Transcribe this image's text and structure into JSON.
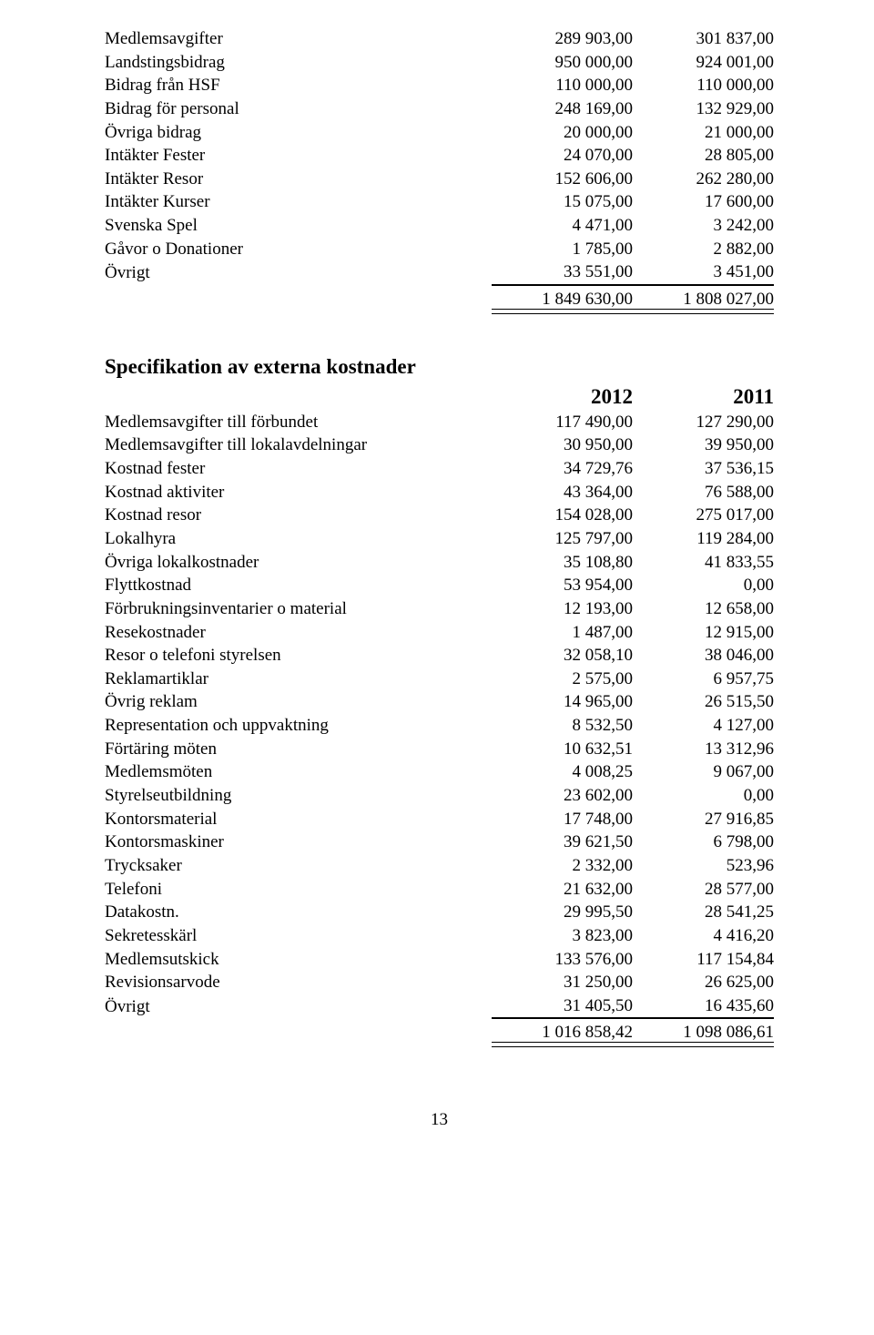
{
  "table1": {
    "rows": [
      {
        "label": "Medlemsavgifter",
        "a": "289 903,00",
        "b": "301 837,00"
      },
      {
        "label": "Landstingsbidrag",
        "a": "950 000,00",
        "b": "924 001,00"
      },
      {
        "label": "Bidrag från HSF",
        "a": "110 000,00",
        "b": "110 000,00"
      },
      {
        "label": "Bidrag för personal",
        "a": "248 169,00",
        "b": "132 929,00"
      },
      {
        "label": "Övriga bidrag",
        "a": "20 000,00",
        "b": "21 000,00"
      },
      {
        "label": "Intäkter Fester",
        "a": "24 070,00",
        "b": "28 805,00"
      },
      {
        "label": "Intäkter Resor",
        "a": "152 606,00",
        "b": "262 280,00"
      },
      {
        "label": "Intäkter Kurser",
        "a": "15 075,00",
        "b": "17 600,00"
      },
      {
        "label": "Svenska Spel",
        "a": "4 471,00",
        "b": "3 242,00"
      },
      {
        "label": "Gåvor o Donationer",
        "a": "1 785,00",
        "b": "2 882,00"
      },
      {
        "label": "Övrigt",
        "a": "33 551,00",
        "b": "3 451,00"
      }
    ],
    "total": {
      "a": "1 849 630,00",
      "b": "1 808 027,00"
    }
  },
  "section2_title": "Specifikation av externa kostnader",
  "years": {
    "a": "2012",
    "b": "2011"
  },
  "table2": {
    "rows": [
      {
        "label": "Medlemsavgifter till förbundet",
        "a": "117 490,00",
        "b": "127 290,00"
      },
      {
        "label": "Medlemsavgifter till lokalavdelningar",
        "a": "30 950,00",
        "b": "39 950,00"
      },
      {
        "label": "Kostnad fester",
        "a": "34 729,76",
        "b": "37 536,15"
      },
      {
        "label": "Kostnad aktiviter",
        "a": "43 364,00",
        "b": "76 588,00"
      },
      {
        "label": "Kostnad resor",
        "a": "154 028,00",
        "b": "275 017,00"
      },
      {
        "label": "Lokalhyra",
        "a": "125 797,00",
        "b": "119 284,00"
      },
      {
        "label": "Övriga lokalkostnader",
        "a": "35 108,80",
        "b": "41 833,55"
      },
      {
        "label": "Flyttkostnad",
        "a": "53 954,00",
        "b": "0,00"
      },
      {
        "label": "Förbrukningsinventarier o material",
        "a": "12 193,00",
        "b": "12 658,00"
      },
      {
        "label": "Resekostnader",
        "a": "1 487,00",
        "b": "12 915,00"
      },
      {
        "label": "Resor o telefoni styrelsen",
        "a": "32 058,10",
        "b": "38 046,00"
      },
      {
        "label": "Reklamartiklar",
        "a": "2 575,00",
        "b": "6 957,75"
      },
      {
        "label": "Övrig reklam",
        "a": "14 965,00",
        "b": "26 515,50"
      },
      {
        "label": "Representation och uppvaktning",
        "a": "8 532,50",
        "b": "4 127,00"
      },
      {
        "label": "Förtäring möten",
        "a": "10 632,51",
        "b": "13 312,96"
      },
      {
        "label": "Medlemsmöten",
        "a": "4 008,25",
        "b": "9 067,00"
      },
      {
        "label": "Styrelseutbildning",
        "a": "23 602,00",
        "b": "0,00"
      },
      {
        "label": "Kontorsmaterial",
        "a": "17 748,00",
        "b": "27 916,85"
      },
      {
        "label": "Kontorsmaskiner",
        "a": "39 621,50",
        "b": "6 798,00"
      },
      {
        "label": "Trycksaker",
        "a": "2 332,00",
        "b": "523,96"
      },
      {
        "label": "Telefoni",
        "a": "21 632,00",
        "b": "28 577,00"
      },
      {
        "label": "Datakostn.",
        "a": "29 995,50",
        "b": "28 541,25"
      },
      {
        "label": "Sekretesskärl",
        "a": "3 823,00",
        "b": "4 416,20"
      },
      {
        "label": "Medlemsutskick",
        "a": "133 576,00",
        "b": "117 154,84"
      },
      {
        "label": "Revisionsarvode",
        "a": "31 250,00",
        "b": "26 625,00"
      },
      {
        "label": "Övrigt",
        "a": "31 405,50",
        "b": "16 435,60"
      }
    ],
    "total": {
      "a": "1 016 858,42",
      "b": "1 098 086,61"
    }
  },
  "page_number": "13"
}
